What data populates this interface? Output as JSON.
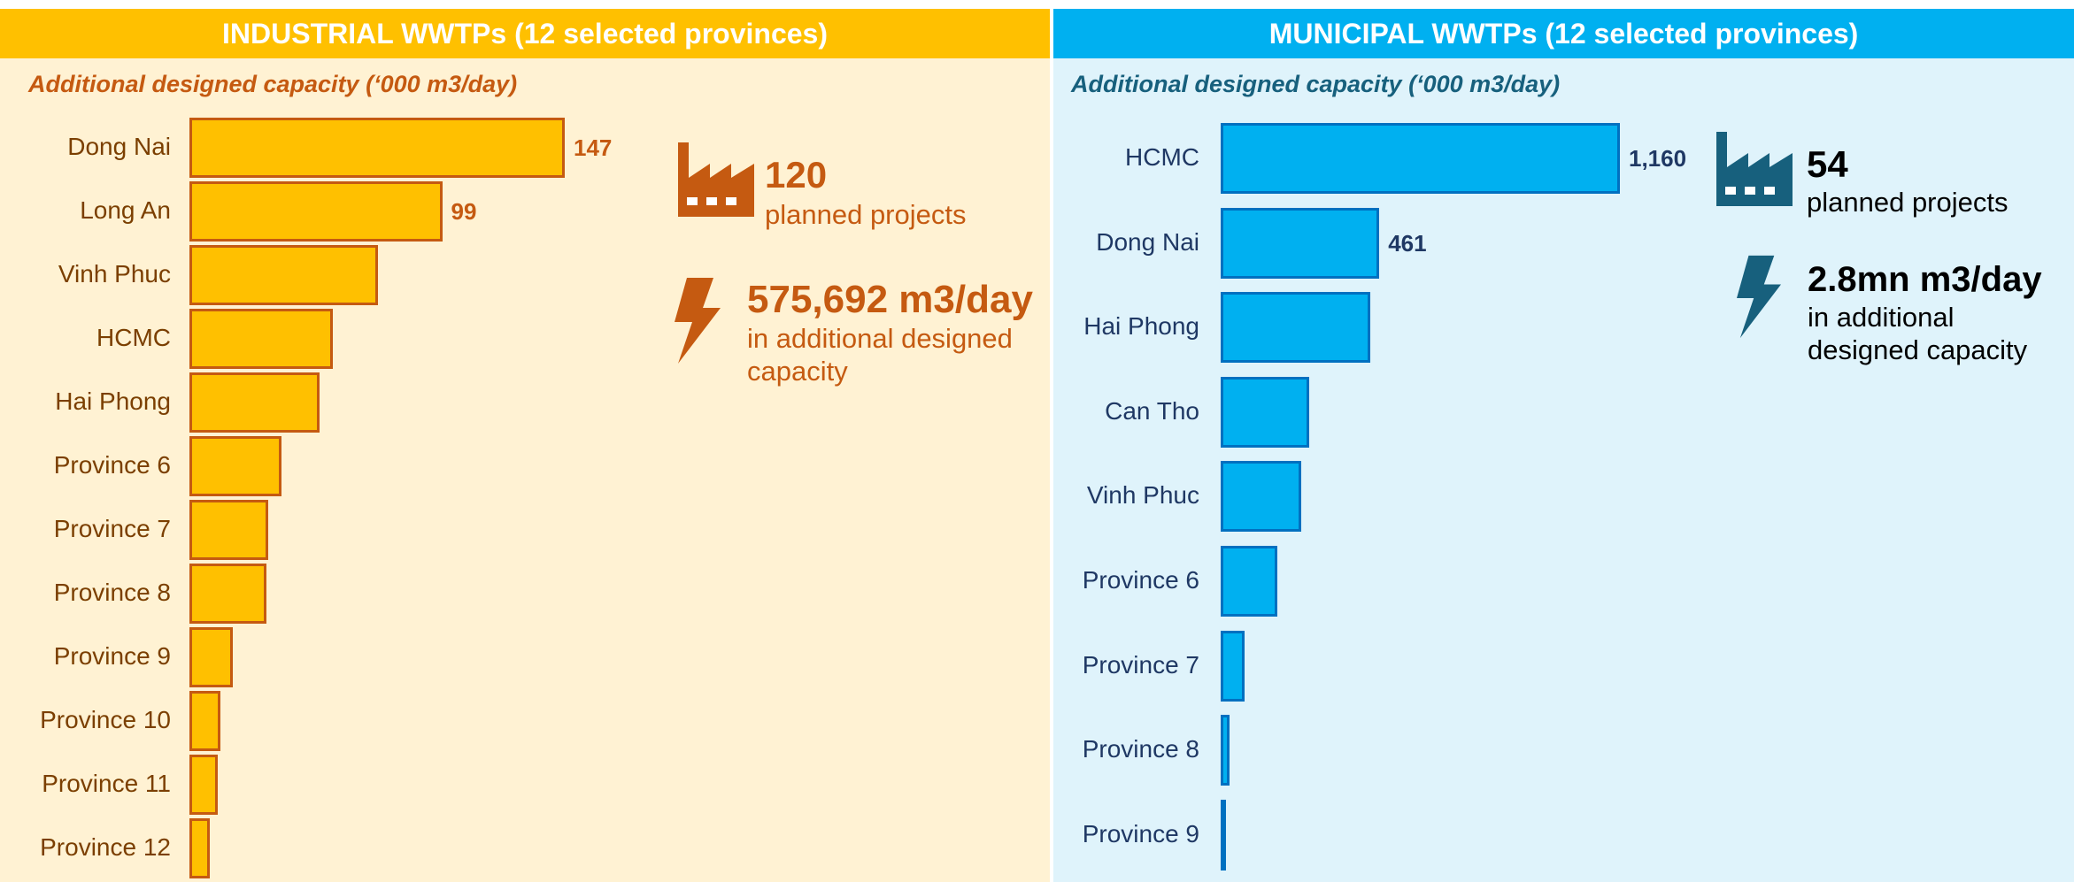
{
  "chart_data": [
    {
      "type": "bar",
      "orientation": "horizontal",
      "title": "INDUSTRIAL WWTPs (12 selected provinces)",
      "subtitle": "Additional designed capacity (‘000 m3/day)",
      "categories": [
        "Dong Nai",
        "Long An",
        "Vinh Phuc",
        "HCMC",
        "Hai Phong",
        "Province 6",
        "Province 7",
        "Province 8",
        "Province 9",
        "Province 10",
        "Province 11",
        "Province 12"
      ],
      "values": [
        147,
        99,
        74,
        56,
        51,
        36,
        31,
        30,
        17,
        12,
        11,
        8
      ],
      "value_labels": [
        "147",
        "99",
        null,
        null,
        null,
        null,
        null,
        null,
        null,
        null,
        null,
        null
      ],
      "color": "#FFC000",
      "edge_color": "#C55A11",
      "header_color": "#FFC000",
      "background": "#FFF2D3",
      "stats": [
        {
          "value": "120",
          "label": "planned projects"
        },
        {
          "value": "575,692 m3/day",
          "label": "in additional designed capacity"
        }
      ]
    },
    {
      "type": "bar",
      "orientation": "horizontal",
      "title": "MUNICIPAL WWTPs (12 selected provinces)",
      "subtitle": "Additional designed capacity (‘000 m3/day)",
      "categories": [
        "HCMC",
        "Dong Nai",
        "Hai Phong",
        "Can Tho",
        "Vinh Phuc",
        "Province 6",
        "Province 7",
        "Province 8",
        "Province 9"
      ],
      "values": [
        1160,
        461,
        434,
        257,
        234,
        165,
        69,
        27,
        8
      ],
      "value_labels": [
        "1,160",
        "461",
        null,
        null,
        null,
        null,
        null,
        null,
        null
      ],
      "color": "#00B0F0",
      "edge_color": "#0070C0",
      "header_color": "#00B0F0",
      "background": "#DFF3FB",
      "stats": [
        {
          "value": "54",
          "label": "planned projects"
        },
        {
          "value": "2.8mn m3/day",
          "label": "in additional designed capacity"
        }
      ]
    }
  ]
}
